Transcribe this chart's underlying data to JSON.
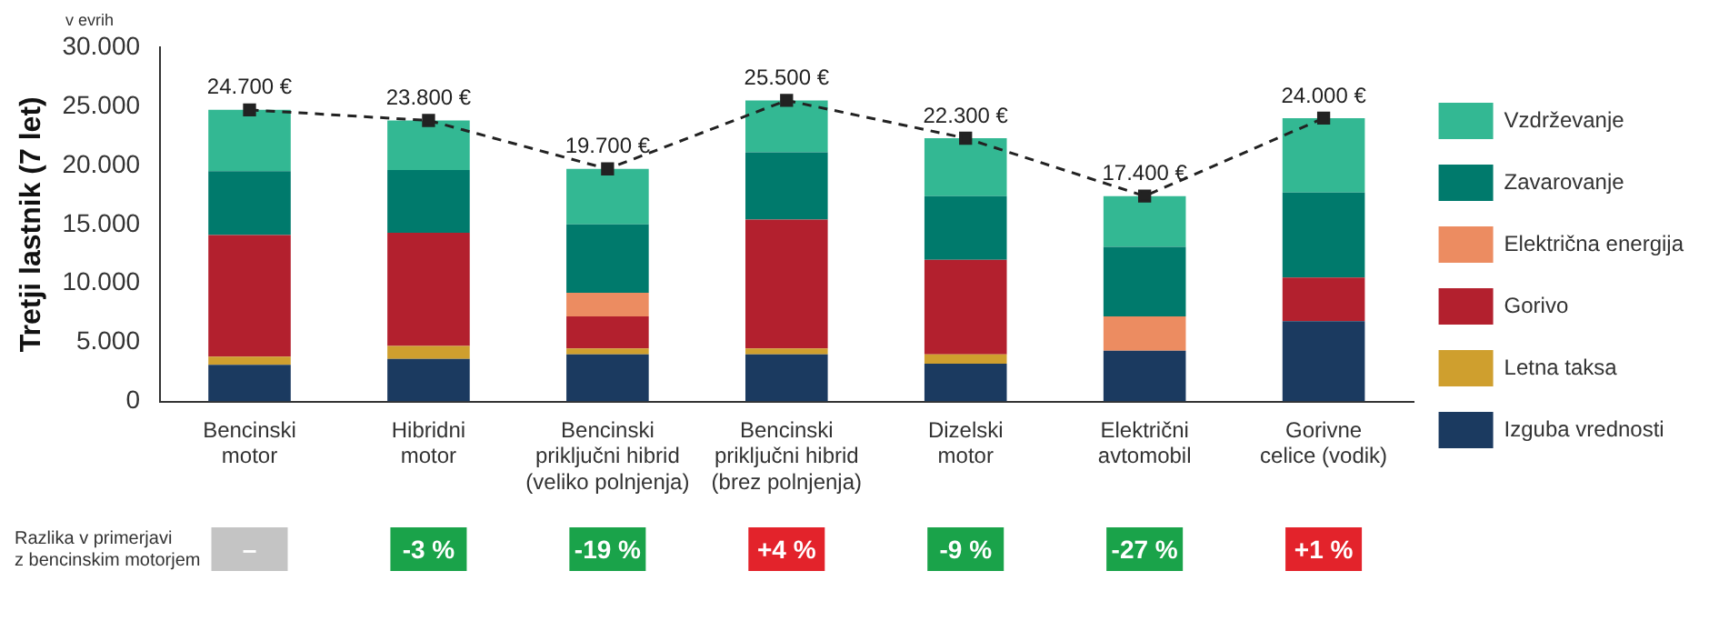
{
  "chart_data": {
    "type": "bar",
    "stacked": true,
    "ylabel": "Tretji lastnik (7 let)",
    "categories": [
      "Bencinski\nmotor",
      "Hibridni\nmotor",
      "Bencinski\npriključni hibrid\n(veliko polnjenja)",
      "Bencinski\npriključni hibrid\n(brez polnjenja)",
      "Dizelski\nmotor",
      "Električni\navtomobil",
      "Gorivne\ncelice (vodik)"
    ],
    "series": [
      {
        "name": "Izguba vrednosti",
        "color": "#1b3a60",
        "values": [
          3100,
          3600,
          4000,
          4000,
          3200,
          4300,
          6800
        ]
      },
      {
        "name": "Letna taksa",
        "color": "#cf9f2e",
        "values": [
          700,
          1100,
          500,
          500,
          800,
          null,
          null
        ]
      },
      {
        "name": "Gorivo",
        "color": "#b3202e",
        "values": [
          10300,
          9600,
          2700,
          10900,
          8000,
          null,
          3700
        ]
      },
      {
        "name": "Električna energija",
        "color": "#ec8c61",
        "values": [
          null,
          null,
          2000,
          null,
          null,
          2900,
          null
        ]
      },
      {
        "name": "Zavarovanje",
        "color": "#007a6c",
        "values": [
          5400,
          5300,
          5800,
          5700,
          5400,
          5900,
          7200
        ]
      },
      {
        "name": "Vzdrževanje",
        "color": "#33b893",
        "values": [
          5200,
          4200,
          4700,
          4400,
          4900,
          4300,
          6300
        ]
      },
      {
        "type": "line",
        "color": "#222222",
        "line_style": "dashed",
        "marker": "square",
        "values": [
          24700,
          23800,
          19700,
          25500,
          22300,
          17400,
          24000
        ],
        "value_labels": [
          "24.700 €",
          "23.800 €",
          "19.700 €",
          "25.500 €",
          "22.300 €",
          "17.400 €",
          "24.000 €"
        ]
      }
    ],
    "ylim": [
      0,
      30000
    ],
    "yticks": [
      {
        "value": 0,
        "label": "0"
      },
      {
        "value": 5000,
        "label": "5.000"
      },
      {
        "value": 10000,
        "label": "10.000"
      },
      {
        "value": 15000,
        "label": "15.000"
      },
      {
        "value": 20000,
        "label": "20.000"
      },
      {
        "value": 25000,
        "label": "25.000"
      },
      {
        "value": 30000,
        "label": "30.000"
      }
    ],
    "grid": false,
    "legend": "right",
    "annotations": [
      "v evrih",
      "Razlika v primerjavi\nz bencinskim motorjem",
      "–",
      "-3 %",
      "-19 %",
      "+4 %",
      "-9 %",
      "-27 %",
      "+1 %"
    ]
  }
}
